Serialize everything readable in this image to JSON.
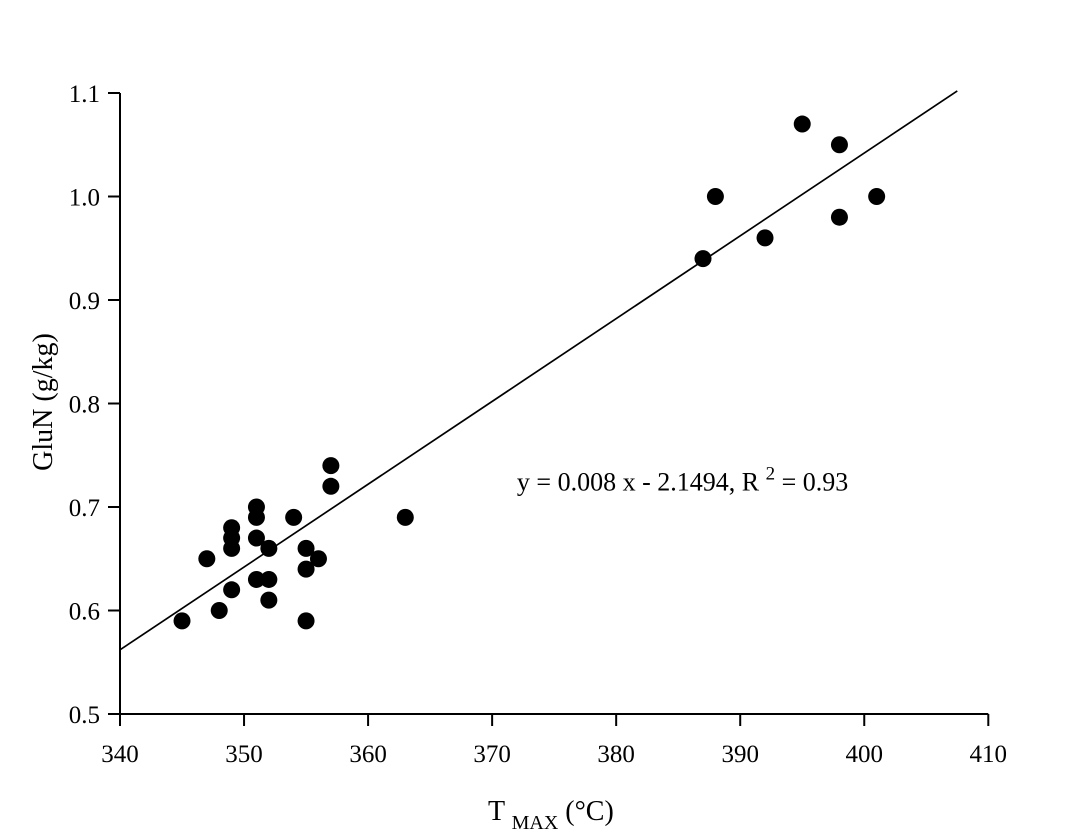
{
  "chart_data": {
    "type": "scatter",
    "title": "",
    "xlabel": "T_MAX (°C)",
    "ylabel": "GluN (g/kg)",
    "xlim": [
      340,
      410
    ],
    "ylim": [
      0.5,
      1.1
    ],
    "x_ticks": [
      340,
      350,
      360,
      370,
      380,
      390,
      400,
      410
    ],
    "x_tick_labels": [
      "340",
      "350",
      "360",
      "370",
      "380",
      "390",
      "400",
      "410"
    ],
    "y_ticks": [
      0.5,
      0.6,
      0.7,
      0.8,
      0.9,
      1.0,
      1.1
    ],
    "y_tick_labels": [
      "0.5",
      "0.6",
      "0.7",
      "0.8",
      "0.9",
      "1.0",
      "1.1"
    ],
    "grid": false,
    "legend": false,
    "marker": "circle",
    "marker_color": "#000000",
    "line_color": "#000000",
    "points": [
      [
        345,
        0.59
      ],
      [
        347,
        0.65
      ],
      [
        348,
        0.6
      ],
      [
        349,
        0.68
      ],
      [
        349,
        0.67
      ],
      [
        349,
        0.66
      ],
      [
        349,
        0.62
      ],
      [
        351,
        0.7
      ],
      [
        351,
        0.69
      ],
      [
        351,
        0.67
      ],
      [
        351,
        0.63
      ],
      [
        352,
        0.66
      ],
      [
        352,
        0.63
      ],
      [
        352,
        0.61
      ],
      [
        354,
        0.69
      ],
      [
        355,
        0.66
      ],
      [
        355,
        0.64
      ],
      [
        355,
        0.59
      ],
      [
        356,
        0.65
      ],
      [
        357,
        0.74
      ],
      [
        357,
        0.72
      ],
      [
        363,
        0.69
      ],
      [
        387,
        0.94
      ],
      [
        388,
        1.0
      ],
      [
        392,
        0.96
      ],
      [
        395,
        1.07
      ],
      [
        398,
        1.05
      ],
      [
        398,
        0.98
      ],
      [
        401,
        1.0
      ]
    ],
    "trendline": {
      "x1": 340,
      "y1": 0.562,
      "x2": 407.5,
      "y2": 1.102,
      "equation": "y = 0.008 x - 2.1494",
      "r_squared": "0.93"
    },
    "annotation": {
      "pre": "y = 0.008 x - 2.1494, R",
      "sup": "2",
      "post": " = 0.93",
      "x": 372,
      "y": 0.716
    }
  },
  "labels": {
    "x_axis_prefix": "T",
    "x_axis_sub": "MAX",
    "x_axis_suffix": "  (°C)",
    "y_axis": "GluN (g/kg)"
  }
}
